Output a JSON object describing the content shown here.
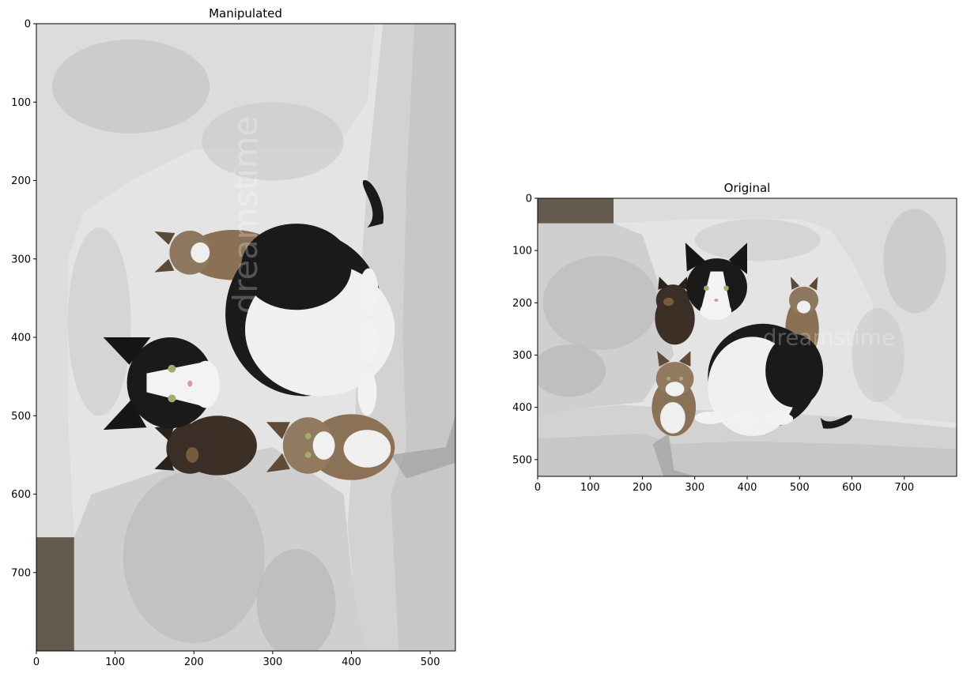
{
  "panels": [
    {
      "title": "Manipulated",
      "image_description": "Photo of four cats on a whitewashed wall, shown rotated 90 degrees counter-clockwise",
      "rotation_deg": -90,
      "x_ticks": [
        0,
        100,
        200,
        300,
        400,
        500
      ],
      "y_ticks": [
        0,
        100,
        200,
        300,
        400,
        500,
        600,
        700
      ],
      "x_range": [
        0,
        532
      ],
      "y_range": [
        0,
        800
      ]
    },
    {
      "title": "Original",
      "image_description": "Photo of four cats (one black-and-white, one tortoiseshell, two tabby) sitting on a whitewashed wall",
      "rotation_deg": 0,
      "x_ticks": [
        0,
        100,
        200,
        300,
        400,
        500,
        600,
        700
      ],
      "y_ticks": [
        0,
        100,
        200,
        300,
        400,
        500
      ],
      "x_range": [
        0,
        800
      ],
      "y_range": [
        0,
        532
      ]
    }
  ],
  "colors": {
    "wall": "#e6e6e6",
    "wall_shadow": "#b5b5b5",
    "stone_dark": "#5a5245",
    "cat_black": "#1a1a1a",
    "cat_white": "#f2f2f2",
    "tabby": "#8a7055",
    "tortie": "#3c2f26"
  }
}
